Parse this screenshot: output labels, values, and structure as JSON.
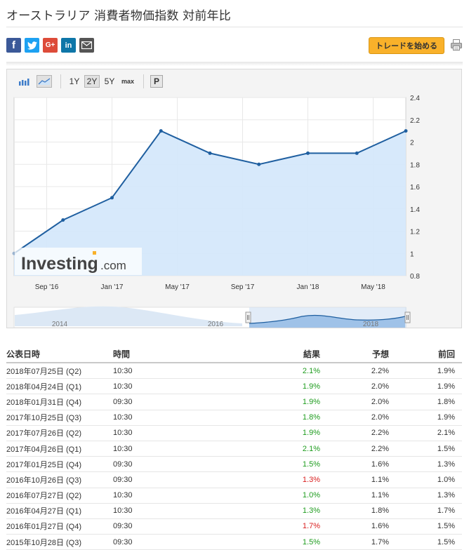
{
  "page": {
    "title": "オーストラリア 消費者物価指数 対前年比",
    "trade_button": "トレードを始める",
    "print_icon": "printer-icon"
  },
  "social": [
    {
      "name": "facebook",
      "glyph": "f",
      "color": "#3b5998"
    },
    {
      "name": "twitter",
      "glyph": "t",
      "color": "#1da1f2"
    },
    {
      "name": "google-plus",
      "glyph": "G+",
      "color": "#dd4b39"
    },
    {
      "name": "linkedin",
      "glyph": "in",
      "color": "#0e76a8"
    },
    {
      "name": "email",
      "glyph": "✉",
      "color": "#555555"
    }
  ],
  "toolbar": {
    "bar_icon": "bar-chart-icon",
    "area_icon": "area-chart-icon",
    "ranges": [
      "1Y",
      "2Y",
      "5Y",
      "max"
    ],
    "selected_range": "2Y",
    "p_button": "P"
  },
  "chart_data": {
    "type": "area",
    "x": [
      "2016-07",
      "2016-10",
      "2017-01",
      "2017-04",
      "2017-07",
      "2017-10",
      "2018-01",
      "2018-04",
      "2018-07"
    ],
    "values": [
      1.0,
      1.3,
      1.5,
      2.1,
      1.9,
      1.8,
      1.9,
      1.9,
      2.1
    ],
    "x_tick_labels": [
      "Sep '16",
      "Jan '17",
      "May '17",
      "Sep '17",
      "Jan '18",
      "May '18"
    ],
    "y_ticks": [
      0.8,
      1,
      1.2,
      1.4,
      1.6,
      1.8,
      2,
      2.2,
      2.4
    ],
    "ylim": [
      0.8,
      2.4
    ],
    "grid": true,
    "line_color": "#1f5fa0",
    "fill_color": "#d5e8fb",
    "watermark": {
      "brand": "Investing",
      "suffix": ".com"
    },
    "navigator_labels": [
      "2014",
      "2016",
      "2018"
    ]
  },
  "table": {
    "headers": [
      "公表日時",
      "時間",
      "結果",
      "予想",
      "前回"
    ],
    "rows": [
      {
        "date": "2018年07月25日 (Q2)",
        "time": "10:30",
        "actual": "2.1%",
        "status": "up",
        "forecast": "2.2%",
        "previous": "1.9%"
      },
      {
        "date": "2018年04月24日 (Q1)",
        "time": "10:30",
        "actual": "1.9%",
        "status": "up",
        "forecast": "2.0%",
        "previous": "1.9%"
      },
      {
        "date": "2018年01月31日 (Q4)",
        "time": "09:30",
        "actual": "1.9%",
        "status": "up",
        "forecast": "2.0%",
        "previous": "1.8%"
      },
      {
        "date": "2017年10月25日 (Q3)",
        "time": "10:30",
        "actual": "1.8%",
        "status": "up",
        "forecast": "2.0%",
        "previous": "1.9%"
      },
      {
        "date": "2017年07月26日 (Q2)",
        "time": "10:30",
        "actual": "1.9%",
        "status": "up",
        "forecast": "2.2%",
        "previous": "2.1%"
      },
      {
        "date": "2017年04月26日 (Q1)",
        "time": "10:30",
        "actual": "2.1%",
        "status": "up",
        "forecast": "2.2%",
        "previous": "1.5%"
      },
      {
        "date": "2017年01月25日 (Q4)",
        "time": "09:30",
        "actual": "1.5%",
        "status": "up",
        "forecast": "1.6%",
        "previous": "1.3%"
      },
      {
        "date": "2016年10月26日 (Q3)",
        "time": "09:30",
        "actual": "1.3%",
        "status": "down",
        "forecast": "1.1%",
        "previous": "1.0%"
      },
      {
        "date": "2016年07月27日 (Q2)",
        "time": "10:30",
        "actual": "1.0%",
        "status": "up",
        "forecast": "1.1%",
        "previous": "1.3%"
      },
      {
        "date": "2016年04月27日 (Q1)",
        "time": "10:30",
        "actual": "1.3%",
        "status": "up",
        "forecast": "1.8%",
        "previous": "1.7%"
      },
      {
        "date": "2016年01月27日 (Q4)",
        "time": "09:30",
        "actual": "1.7%",
        "status": "down",
        "forecast": "1.6%",
        "previous": "1.5%"
      },
      {
        "date": "2015年10月28日 (Q3)",
        "time": "09:30",
        "actual": "1.5%",
        "status": "up",
        "forecast": "1.7%",
        "previous": "1.5%"
      }
    ]
  }
}
